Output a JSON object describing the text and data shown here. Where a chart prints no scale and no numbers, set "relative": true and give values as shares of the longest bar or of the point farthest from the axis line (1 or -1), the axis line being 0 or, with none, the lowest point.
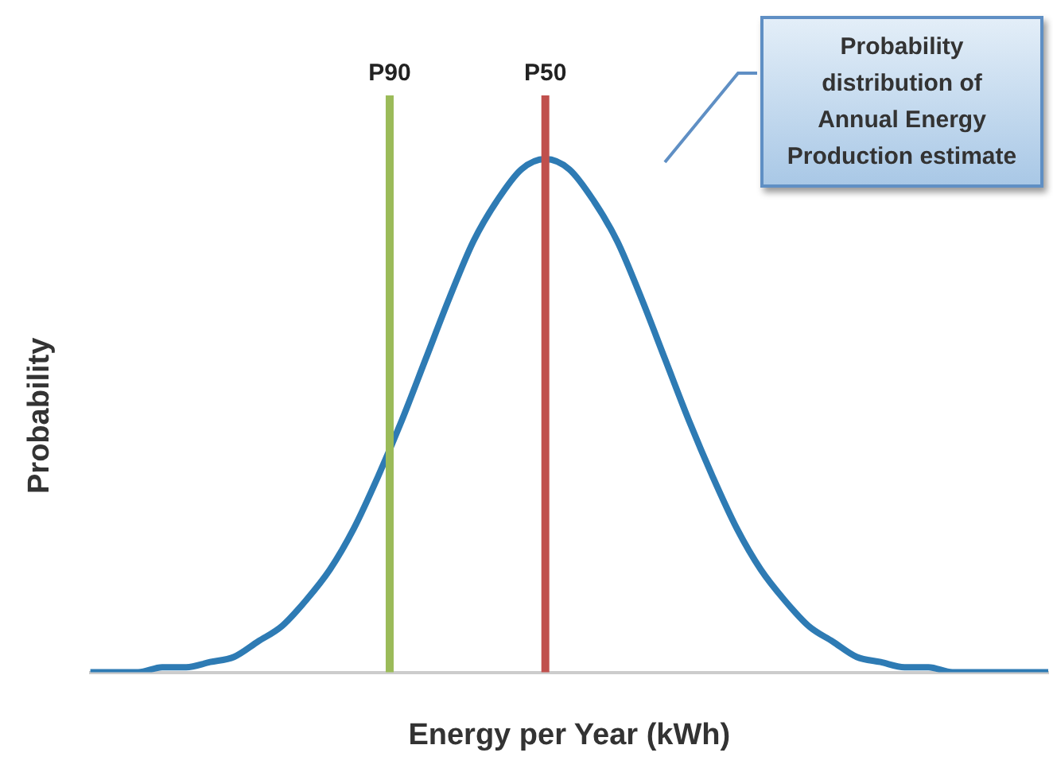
{
  "chart_data": {
    "type": "line",
    "relative": true,
    "xlabel": "Energy per Year (kWh)",
    "ylabel": "Probability",
    "categories": [
      null,
      null,
      null,
      null,
      null,
      null,
      null,
      null,
      null,
      null,
      null,
      null,
      null,
      null,
      null,
      null,
      null,
      null,
      null,
      null,
      null,
      null,
      null,
      null,
      null,
      null,
      null,
      null,
      null,
      null,
      null,
      null,
      null,
      null,
      null,
      null,
      null,
      null,
      null,
      null,
      null
    ],
    "series": [
      {
        "color": "#2e7bb4",
        "values": [
          0,
          0,
          0,
          0.01,
          0.01,
          0.02,
          0.03,
          0.06,
          0.09,
          0.14,
          0.2,
          0.28,
          0.38,
          0.49,
          0.61,
          0.73,
          0.84,
          0.92,
          0.98,
          1,
          0.98,
          0.92,
          0.84,
          0.73,
          0.61,
          0.49,
          0.38,
          0.28,
          0.2,
          0.14,
          0.09,
          0.06,
          0.03,
          0.02,
          0.01,
          0.01,
          0,
          0,
          0,
          0,
          0
        ]
      }
    ],
    "annotations": [
      "P90",
      "P50",
      "Probability distribution of Annual Energy Production estimate"
    ],
    "grid": false,
    "legend": false,
    "marker": "none",
    "line_style": "solid"
  }
}
